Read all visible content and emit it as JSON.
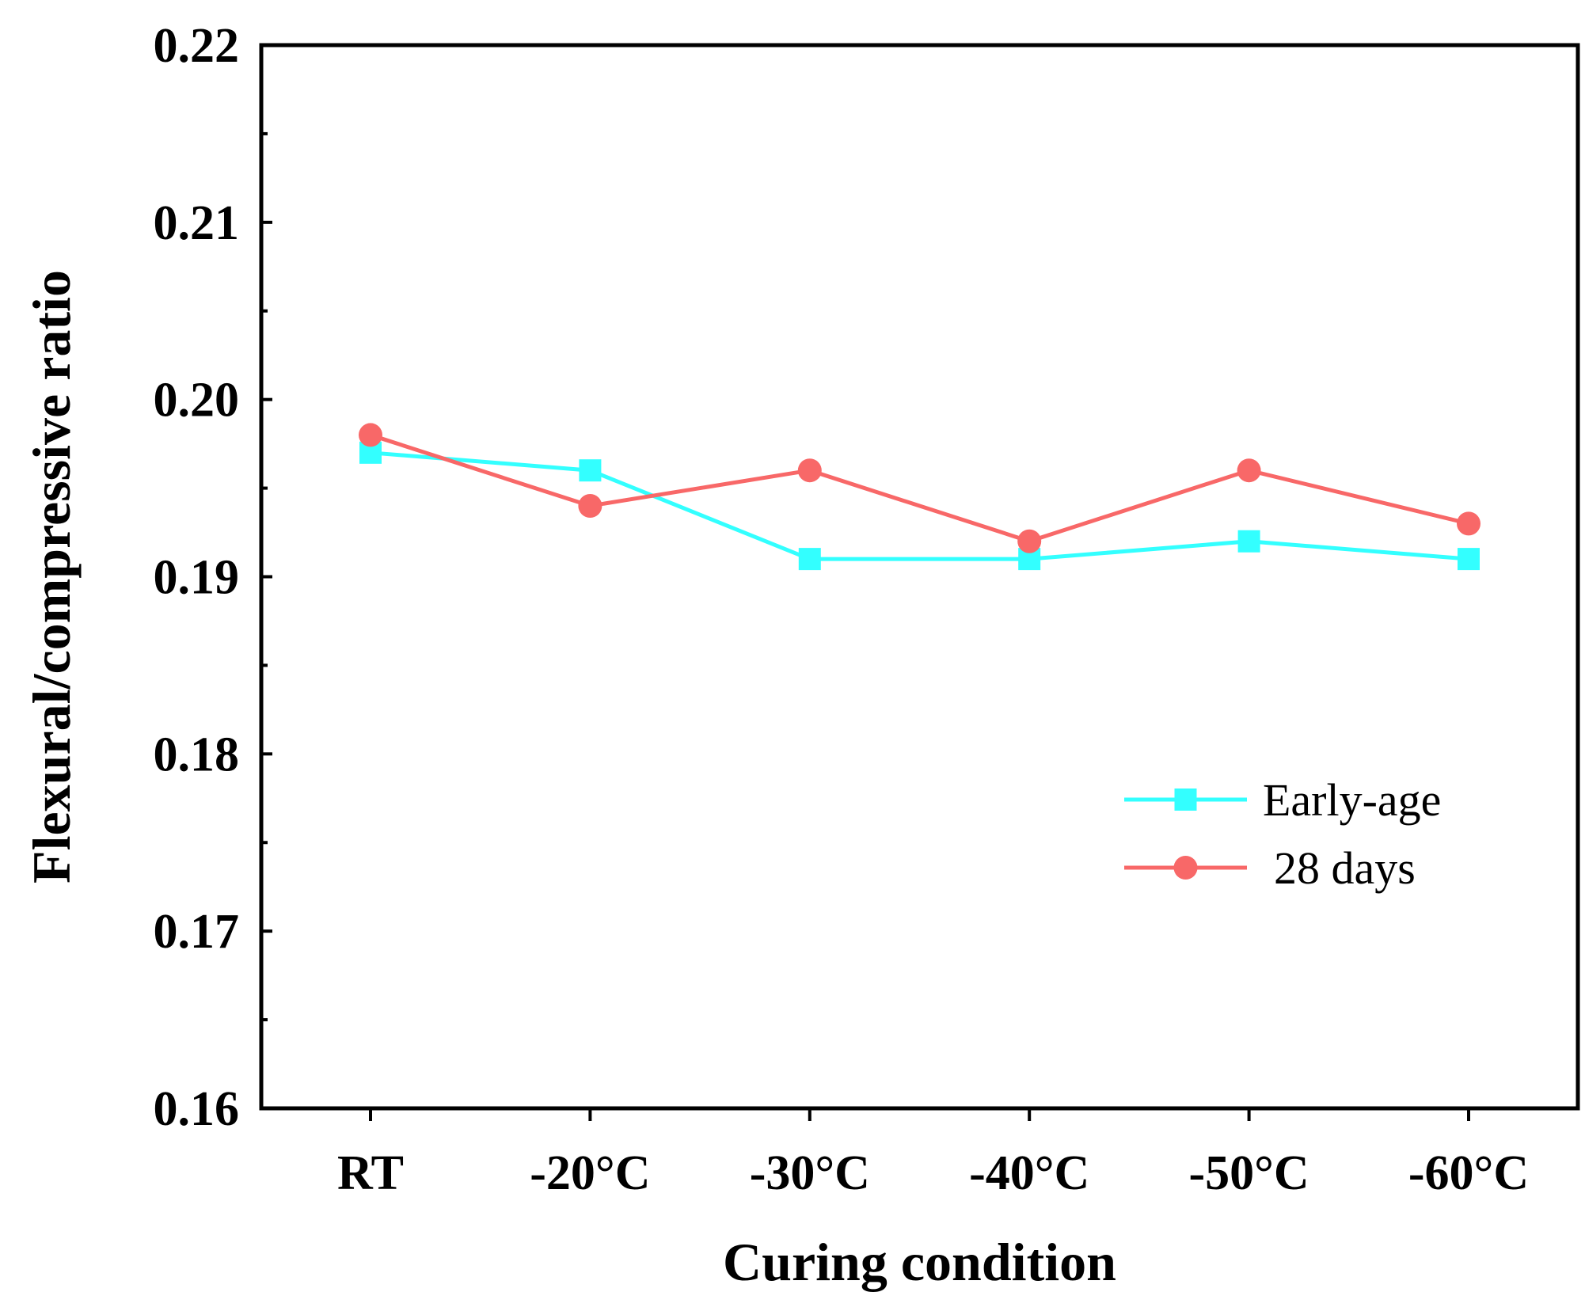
{
  "chart_data": {
    "type": "line",
    "title": "",
    "xlabel": "Curing condition",
    "ylabel": "Flexural/compressive ratio",
    "categories": [
      "RT",
      "-20°C",
      "-30°C",
      "-40°C",
      "-50°C",
      "-60°C"
    ],
    "ylim": [
      0.16,
      0.22
    ],
    "yticks": [
      "0.16",
      "0.17",
      "0.18",
      "0.19",
      "0.20",
      "0.21",
      "0.22"
    ],
    "grid": false,
    "legend_position": "right-middle",
    "series": [
      {
        "name": "Early-age",
        "marker": "square",
        "color": "#33FFFF",
        "values": [
          0.197,
          0.196,
          0.191,
          0.191,
          0.192,
          0.191
        ]
      },
      {
        "name": "28 days",
        "marker": "circle",
        "color": "#F86868",
        "values": [
          0.198,
          0.194,
          0.196,
          0.192,
          0.196,
          0.193
        ]
      }
    ]
  }
}
